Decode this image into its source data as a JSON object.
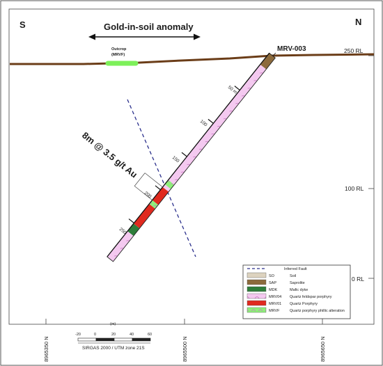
{
  "compass": {
    "left": "S",
    "right": "N"
  },
  "anomaly_label": "Gold-in-soil anomaly",
  "outcrop_label": [
    "Outcrop",
    "(MRVF)"
  ],
  "drillhole": {
    "name": "MRV-003",
    "depth_labels": [
      "50 m",
      "100",
      "150",
      "200",
      "250"
    ]
  },
  "intercept": "8m @ 3.5 g/t Au",
  "rl_labels": [
    "250 RL",
    "100 RL",
    "0 RL"
  ],
  "eastings": [
    "8965350 N",
    "8965500 N",
    "8965650 N"
  ],
  "scale": {
    "ticks": [
      "-20",
      "0",
      "20",
      "40",
      "60"
    ],
    "unit": "(m)",
    "caption": "SIRGAS 2000 / UTM zone 21S"
  },
  "legend": [
    {
      "code": "",
      "label": "Inferred Fault",
      "kind": "fault",
      "color": "#2a2f8c"
    },
    {
      "code": "SO",
      "label": "Soil",
      "kind": "box",
      "color": "#ddd3bf"
    },
    {
      "code": "SAP",
      "label": "Saprolite",
      "kind": "box",
      "color": "#8c6a3c"
    },
    {
      "code": "MDK",
      "label": "Mafic dyke",
      "kind": "box",
      "color": "#2e7d3a"
    },
    {
      "code": "MRV04",
      "label": "Quartz feldspar porphyry",
      "kind": "box",
      "color": "#f4c9f0"
    },
    {
      "code": "MRV01",
      "label": "Quartz Porphyry",
      "kind": "box",
      "color": "#e02a1f"
    },
    {
      "code": "MRVF",
      "label": "Quartz porphyry phillic alteration",
      "kind": "box",
      "color": "#8ef07a"
    }
  ],
  "colors": {
    "surface": "#6b3d18",
    "outcrop": "#7df05a",
    "fault": "#2a2f8c",
    "frame": "#333333"
  }
}
